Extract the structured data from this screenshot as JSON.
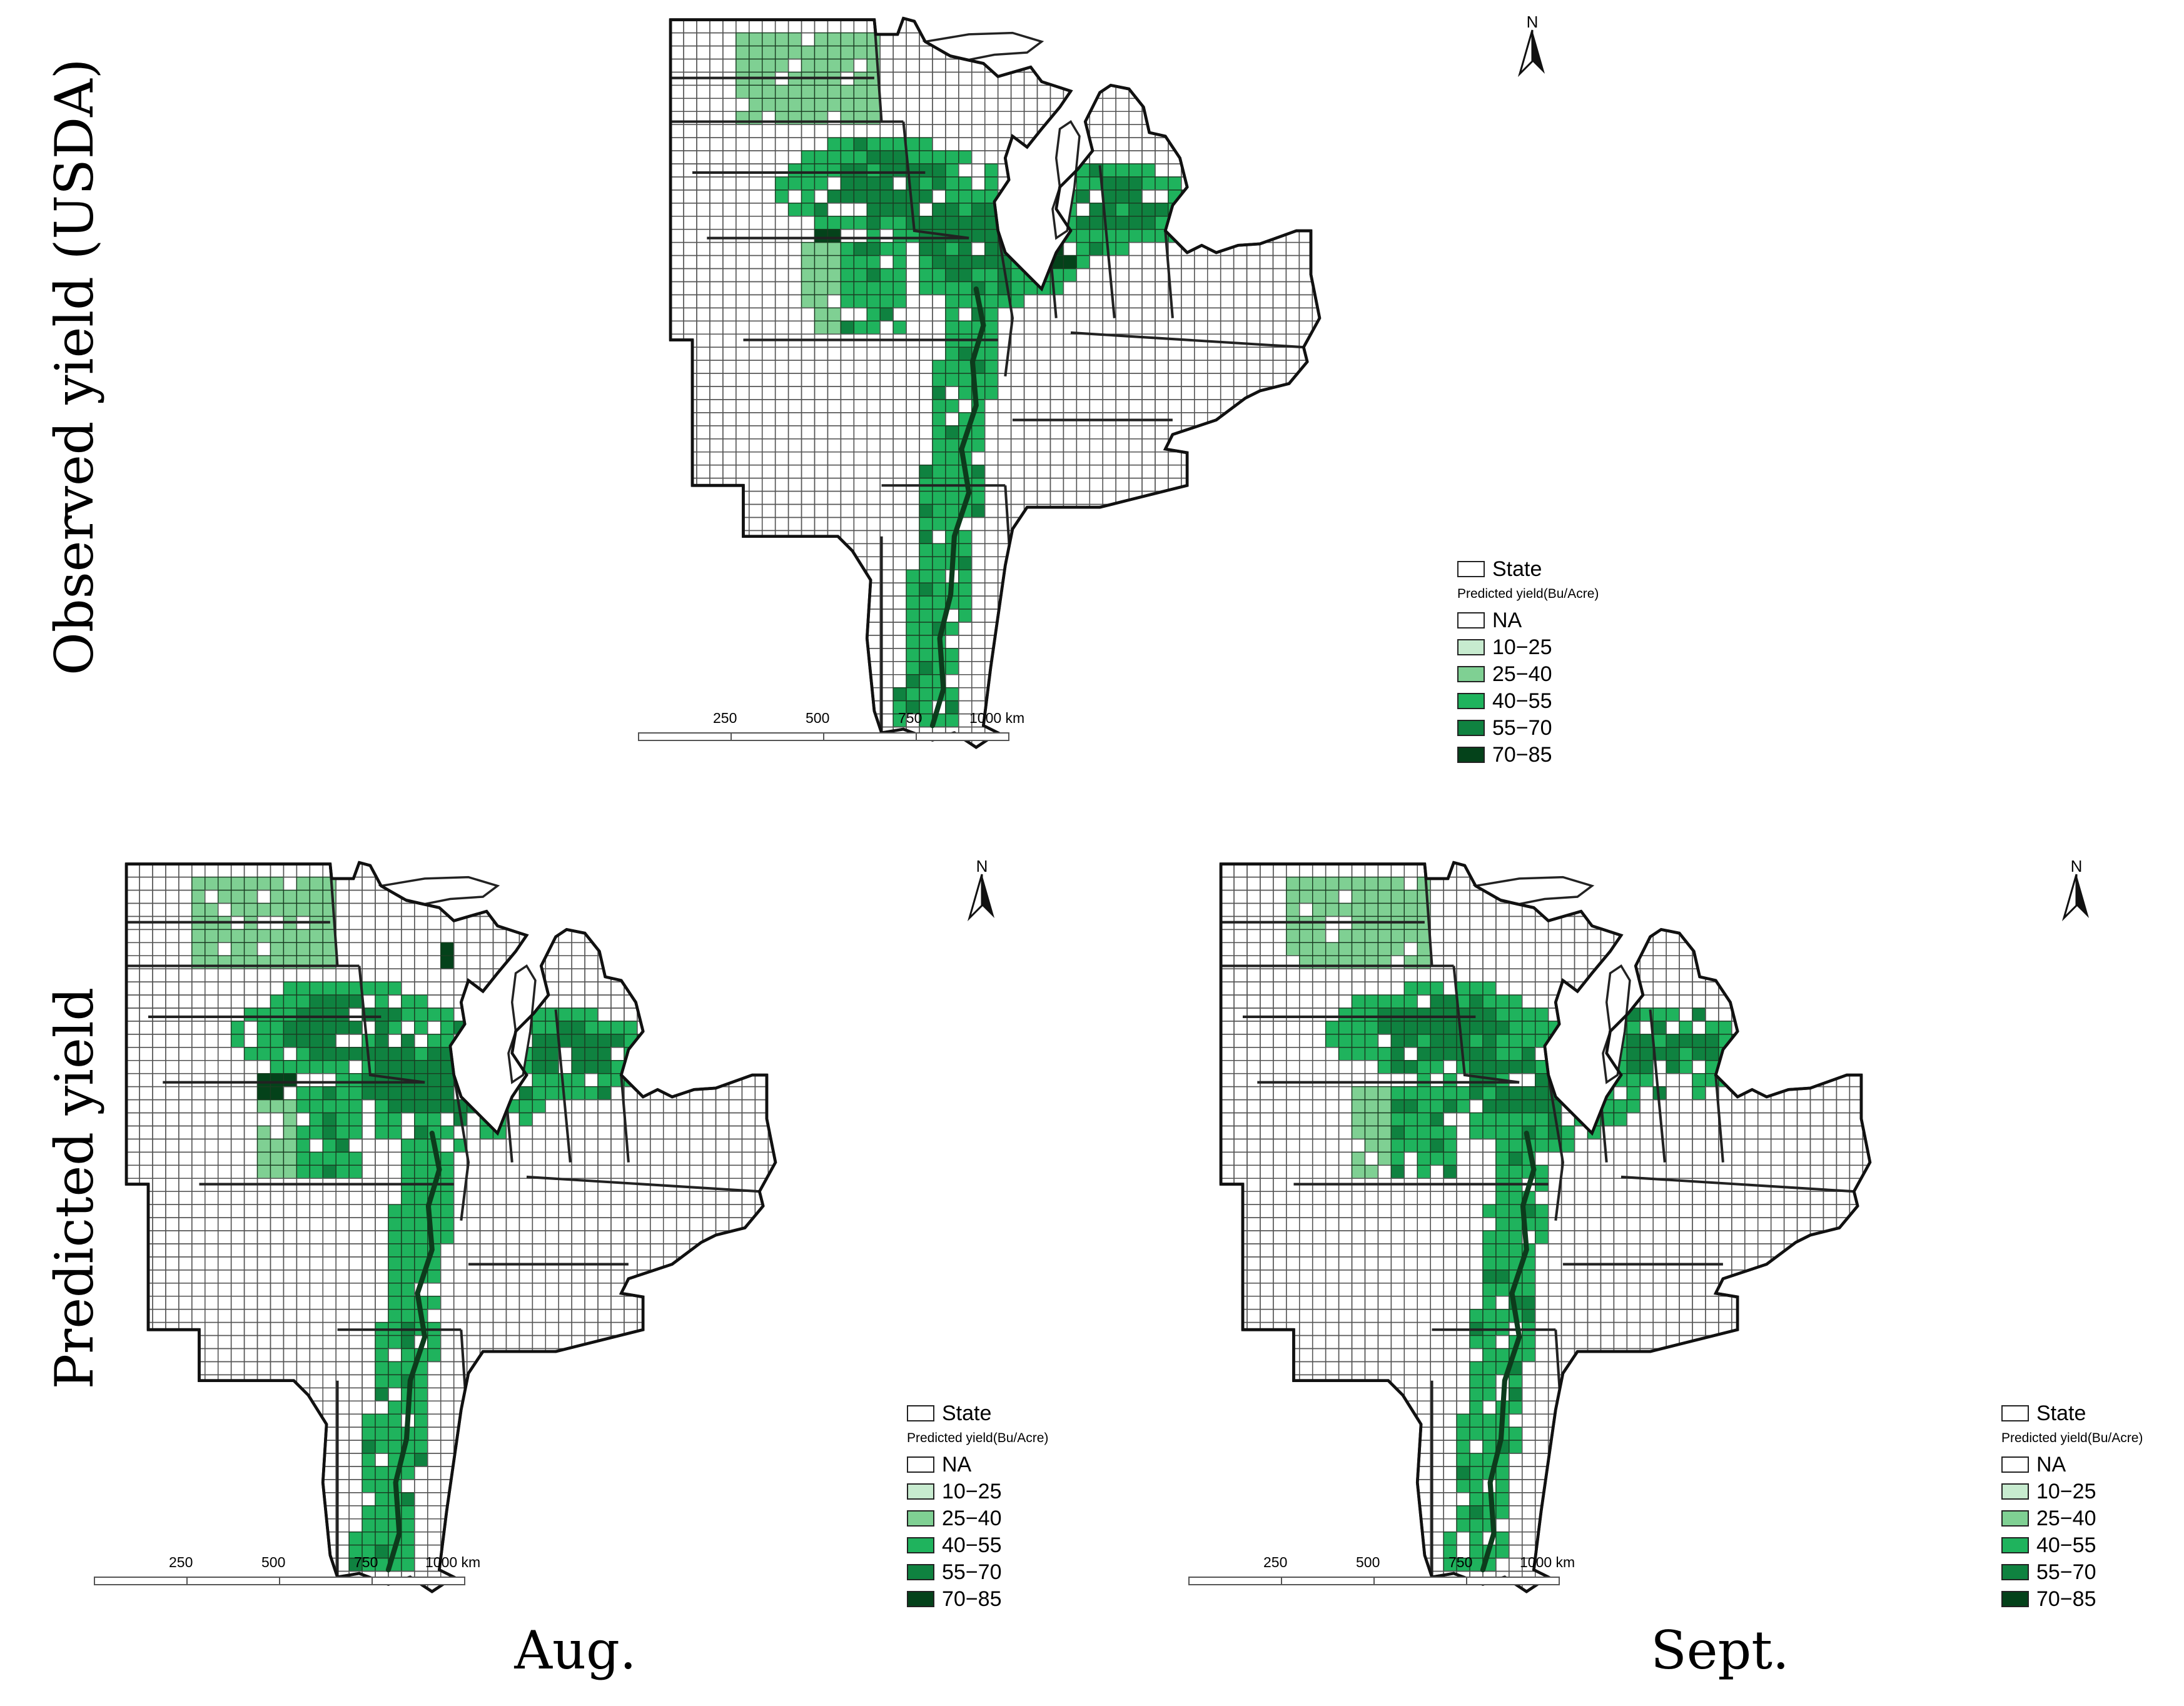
{
  "row_labels": {
    "top": "Observed yield (USDA)",
    "bottom": "Predicted yield"
  },
  "captions": {
    "aug": "Aug.",
    "sept": "Sept."
  },
  "north_label": "N",
  "legend": {
    "state_label": "State",
    "title": "Predicted yield(Bu/Acre)",
    "classes": [
      {
        "label": "NA",
        "color": "#ffffff"
      },
      {
        "label": "10−25",
        "color": "#c7ebcf"
      },
      {
        "label": "25−40",
        "color": "#7fd093"
      },
      {
        "label": "40−55",
        "color": "#1fb35d"
      },
      {
        "label": "55−70",
        "color": "#0f8240"
      },
      {
        "label": "70−85",
        "color": "#04421a"
      }
    ]
  },
  "scale_labels": [
    "250",
    "500",
    "750",
    "1000 km"
  ],
  "maps": [
    {
      "id": "observed",
      "title_bind": "row_labels.top"
    },
    {
      "id": "aug",
      "title_bind": "captions.aug"
    },
    {
      "id": "sept",
      "title_bind": "captions.sept"
    }
  ]
}
